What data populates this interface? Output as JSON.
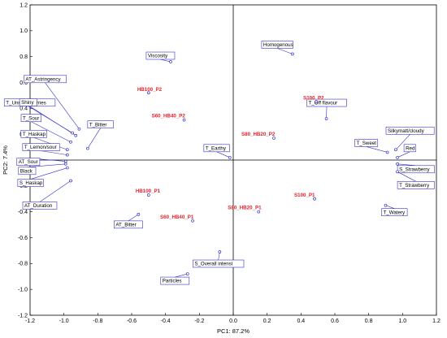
{
  "chart_data": {
    "type": "scatter",
    "xlabel": "PC1: 87.2%",
    "ylabel": "PC2: 7.4%",
    "xlim": [
      -1.2,
      1.2
    ],
    "ylim": [
      -1.2,
      1.2
    ],
    "x_ticks": [
      "-1.2",
      "-1.0",
      "-0.8",
      "-0.6",
      "-0.4",
      "-0.2",
      "0.0",
      "0.2",
      "0.4",
      "0.6",
      "0.8",
      "1.0",
      "1.2"
    ],
    "y_ticks": [
      "1.2",
      "1.0",
      "0.8",
      "0.6",
      "0.4",
      "0.2",
      "0.0",
      "-0.2",
      "-0.4",
      "-0.6",
      "-0.8",
      "-1.0",
      "-1.2"
    ],
    "grid": false,
    "colors": {
      "variables": "#3333cc",
      "samples": "#e8202a",
      "frame": "#000000"
    },
    "variables": [
      {
        "label": "Viscosity",
        "x": -0.37,
        "y": 0.76
      },
      {
        "label": "Homogenous",
        "x": 0.35,
        "y": 0.82
      },
      {
        "label": "AT_Astringency",
        "x": -0.91,
        "y": 0.24
      },
      {
        "label": "T_Unriped berries",
        "x": -0.93,
        "y": 0.19
      },
      {
        "label": "Shiny",
        "x": -0.95,
        "y": 0.21
      },
      {
        "label": "T_Sour",
        "x": -0.96,
        "y": 0.14
      },
      {
        "label": "T_Bitter",
        "x": -0.86,
        "y": 0.09
      },
      {
        "label": "T_Haskap",
        "x": -0.98,
        "y": 0.08
      },
      {
        "label": "T_Lemon/sour",
        "x": -0.98,
        "y": 0.04
      },
      {
        "label": "AT_Sour",
        "x": -0.99,
        "y": -0.01
      },
      {
        "label": "Black",
        "x": -0.99,
        "y": -0.03
      },
      {
        "label": "S_Haskap",
        "x": -0.98,
        "y": -0.06
      },
      {
        "label": "AT_Duration",
        "x": -0.96,
        "y": -0.16
      },
      {
        "label": "AT_Bitter",
        "x": -0.56,
        "y": -0.42
      },
      {
        "label": "T_Earthy",
        "x": -0.02,
        "y": 0.02
      },
      {
        "label": "T_Off flavour",
        "x": 0.55,
        "y": 0.32
      },
      {
        "label": "T_Sweet",
        "x": 0.91,
        "y": 0.06
      },
      {
        "label": "Silkymatt/cloudy",
        "x": 0.96,
        "y": 0.08
      },
      {
        "label": "Red",
        "x": 0.97,
        "y": 0.02
      },
      {
        "label": "S_Strawberry",
        "x": 0.97,
        "y": -0.03
      },
      {
        "label": "T_Strawberry",
        "x": 0.97,
        "y": -0.09
      },
      {
        "label": "T_Watery",
        "x": 0.9,
        "y": -0.35
      },
      {
        "label": "S_Overall intensi",
        "x": -0.08,
        "y": -0.71
      },
      {
        "label": "Particles",
        "x": -0.27,
        "y": -0.88
      }
    ],
    "samples": [
      {
        "label": "HB100_P2",
        "x": -0.5,
        "y": 0.52
      },
      {
        "label": "S60_HB40_P2",
        "x": -0.29,
        "y": 0.31
      },
      {
        "label": "S100_P2",
        "x": 0.49,
        "y": 0.45
      },
      {
        "label": "S80_HB20_P2",
        "x": 0.24,
        "y": 0.17
      },
      {
        "label": "HB100_P1",
        "x": -0.5,
        "y": -0.27
      },
      {
        "label": "S60_HB40_P1",
        "x": -0.24,
        "y": -0.47
      },
      {
        "label": "S100_P1",
        "x": 0.48,
        "y": -0.3
      },
      {
        "label": "S80_HB20_P1",
        "x": 0.15,
        "y": -0.4
      }
    ]
  }
}
